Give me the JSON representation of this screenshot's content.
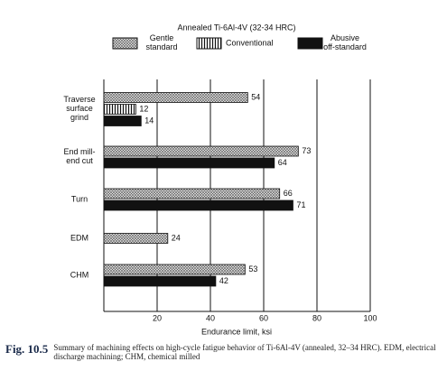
{
  "chart_data": {
    "type": "barh",
    "title": "Annealed Ti-6Al-4V (32-34 HRC)",
    "xlabel": "Endurance limit, ksi",
    "categories": [
      "Traverse\nsurface\ngrind",
      "End mill-\nend cut",
      "Turn",
      "EDM",
      "CHM"
    ],
    "series": [
      {
        "name": "Gentle\nstandard",
        "color": "#c8c8c8",
        "pattern": "crosshatch",
        "values": [
          54,
          73,
          66,
          24,
          53
        ]
      },
      {
        "name": "Conventional",
        "color": "#ffffff",
        "pattern": "vertical-lines",
        "values": [
          12,
          null,
          null,
          null,
          null
        ]
      },
      {
        "name": "Abusive\noff-standard",
        "color": "#111111",
        "pattern": "solid",
        "values": [
          14,
          64,
          71,
          null,
          42
        ]
      }
    ],
    "xlim": [
      0,
      100
    ],
    "xticks": [
      20,
      40,
      60,
      80,
      100
    ],
    "grid": true,
    "caption_label": "Fig. 10.5",
    "caption": "Summary of machining effects on high-cycle fatigue behavior of Ti-6Al-4V (annealed, 32–34 HRC). EDM, electrical discharge machining; CHM, chemical milled"
  }
}
